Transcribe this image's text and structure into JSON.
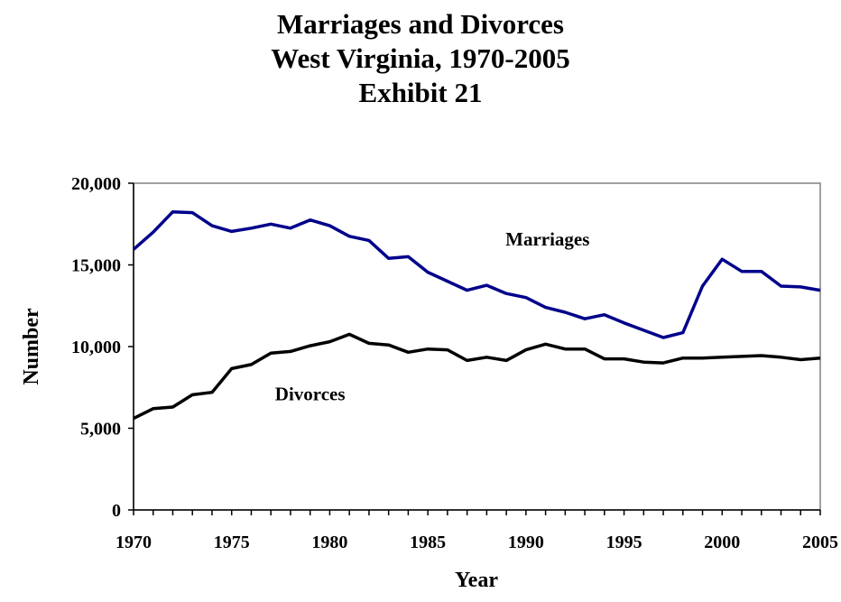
{
  "titles": {
    "line1": "Marriages and Divorces",
    "line2": "West Virginia, 1970-2005",
    "line3": "Exhibit 21"
  },
  "chart_data": {
    "type": "line",
    "xlabel": "Year",
    "ylabel": "Number",
    "xlim": [
      1970,
      2005
    ],
    "ylim": [
      0,
      20000
    ],
    "xticks": [
      1970,
      1975,
      1980,
      1985,
      1990,
      1995,
      2000,
      2005
    ],
    "xtick_labels": [
      "1970",
      "1975",
      "1980",
      "1985",
      "1990",
      "1995",
      "2000",
      "2005"
    ],
    "yticks": [
      0,
      5000,
      10000,
      15000,
      20000
    ],
    "ytick_labels": [
      "0",
      "5,000",
      "10,000",
      "15,000",
      "20,000"
    ],
    "grid": false,
    "legend": "none (series labeled inline)",
    "x": [
      1970,
      1971,
      1972,
      1973,
      1974,
      1975,
      1976,
      1977,
      1978,
      1979,
      1980,
      1981,
      1982,
      1983,
      1984,
      1985,
      1986,
      1987,
      1988,
      1989,
      1990,
      1991,
      1992,
      1993,
      1994,
      1995,
      1996,
      1997,
      1998,
      1999,
      2000,
      2001,
      2002,
      2003,
      2004,
      2005
    ],
    "series": [
      {
        "name": "Marriages",
        "color": "#00008b",
        "values": [
          15950,
          17000,
          18250,
          18200,
          17400,
          17050,
          17250,
          17500,
          17250,
          17750,
          17400,
          16750,
          16500,
          15400,
          15500,
          14550,
          14000,
          13450,
          13750,
          13250,
          13000,
          12400,
          12100,
          11700,
          11950,
          11450,
          11000,
          10550,
          10850,
          13700,
          15350,
          14600,
          14600,
          13700,
          13650,
          13450
        ]
      },
      {
        "name": "Divorces",
        "color": "#000000",
        "values": [
          5600,
          6200,
          6300,
          7050,
          7200,
          8650,
          8900,
          9600,
          9700,
          10050,
          10300,
          10750,
          10200,
          10100,
          9650,
          9850,
          9800,
          9150,
          9350,
          9150,
          9800,
          10150,
          9850,
          9850,
          9250,
          9250,
          9050,
          9000,
          9300,
          9300,
          9350,
          9400,
          9450,
          9350,
          9200,
          9300
        ]
      }
    ]
  }
}
